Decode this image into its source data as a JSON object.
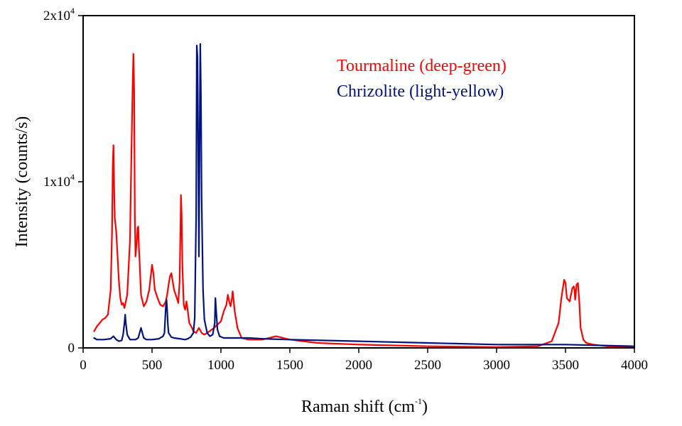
{
  "chart_data": {
    "type": "line",
    "title": "",
    "xlabel": "Raman shift (cm",
    "xlabel_sup": "-1",
    "xlabel_close": ")",
    "ylabel": "Intensity (counts/s)",
    "xlim": [
      0,
      4000
    ],
    "ylim": [
      0,
      20000
    ],
    "grid": false,
    "legend_position": "top-right (inside plot, text only)",
    "x_ticks": [
      {
        "value": 0,
        "label": "0"
      },
      {
        "value": 500,
        "label": "500"
      },
      {
        "value": 1000,
        "label": "1000"
      },
      {
        "value": 1500,
        "label": "1500"
      },
      {
        "value": 2000,
        "label": "2000"
      },
      {
        "value": 2500,
        "label": "2500"
      },
      {
        "value": 3000,
        "label": "3000"
      },
      {
        "value": 3500,
        "label": "3500"
      },
      {
        "value": 4000,
        "label": "4000"
      }
    ],
    "y_ticks": [
      {
        "value": 0,
        "base": "0",
        "sup": ""
      },
      {
        "value": 10000,
        "base": "1x10",
        "sup": "4"
      },
      {
        "value": 20000,
        "base": "2x10",
        "sup": "4"
      }
    ],
    "series": [
      {
        "name": "Tourmaline (deep-green)",
        "color": "#ff0000",
        "x": [
          80,
          100,
          120,
          140,
          160,
          180,
          200,
          210,
          215,
          220,
          225,
          230,
          240,
          250,
          260,
          270,
          280,
          290,
          300,
          320,
          340,
          350,
          360,
          365,
          370,
          375,
          380,
          390,
          395,
          400,
          405,
          410,
          420,
          440,
          460,
          480,
          500,
          510,
          520,
          540,
          560,
          580,
          600,
          610,
          620,
          630,
          640,
          650,
          660,
          680,
          690,
          700,
          705,
          710,
          715,
          720,
          730,
          740,
          750,
          760,
          770,
          790,
          800,
          820,
          840,
          860,
          880,
          900,
          950,
          1000,
          1020,
          1040,
          1050,
          1060,
          1070,
          1080,
          1085,
          1090,
          1100,
          1120,
          1150,
          1200,
          1300,
          1400,
          1500,
          1700,
          2000,
          2500,
          3000,
          3300,
          3400,
          3450,
          3470,
          3490,
          3500,
          3510,
          3530,
          3550,
          3560,
          3565,
          3570,
          3575,
          3580,
          3590,
          3600,
          3610,
          3630,
          3650,
          3700,
          3800,
          4000
        ],
        "y": [
          1000,
          1300,
          1500,
          1700,
          1800,
          2000,
          3500,
          7000,
          11000,
          12200,
          9500,
          7800,
          7000,
          5500,
          4000,
          3000,
          2600,
          2700,
          2400,
          3200,
          6500,
          11500,
          16000,
          17700,
          15500,
          8000,
          5500,
          6500,
          7200,
          7300,
          6000,
          5200,
          3200,
          2500,
          2800,
          3500,
          5000,
          4500,
          3500,
          3000,
          2600,
          2500,
          2800,
          3200,
          3800,
          4300,
          4500,
          4000,
          3500,
          3000,
          2700,
          4000,
          6500,
          9200,
          8000,
          5000,
          2600,
          2300,
          2800,
          2200,
          1500,
          1200,
          1000,
          900,
          1200,
          900,
          800,
          900,
          1200,
          1600,
          2200,
          2600,
          3200,
          2800,
          2500,
          3000,
          3400,
          3000,
          2200,
          1200,
          600,
          500,
          500,
          700,
          500,
          300,
          200,
          100,
          50,
          100,
          400,
          1500,
          3000,
          4100,
          3900,
          3000,
          2800,
          3600,
          3700,
          3500,
          2900,
          3300,
          3800,
          3900,
          2800,
          1200,
          500,
          300,
          200,
          100,
          0
        ]
      },
      {
        "name": "Chrizolite (light-yellow)",
        "color": "#001380",
        "x": [
          80,
          100,
          150,
          200,
          220,
          240,
          260,
          280,
          290,
          300,
          305,
          310,
          320,
          340,
          380,
          400,
          410,
          420,
          430,
          440,
          460,
          500,
          550,
          580,
          590,
          600,
          605,
          610,
          615,
          620,
          640,
          660,
          700,
          740,
          760,
          780,
          800,
          810,
          820,
          825,
          830,
          835,
          840,
          845,
          850,
          855,
          860,
          870,
          880,
          900,
          920,
          940,
          955,
          960,
          965,
          975,
          990,
          1020,
          1100,
          1200,
          1300,
          1500,
          2000,
          2500,
          3000,
          3500,
          4000
        ],
        "y": [
          600,
          500,
          500,
          550,
          700,
          500,
          400,
          450,
          800,
          1500,
          2000,
          1500,
          800,
          500,
          500,
          600,
          900,
          1200,
          900,
          600,
          500,
          500,
          550,
          700,
          900,
          2500,
          2900,
          2300,
          1400,
          900,
          650,
          600,
          550,
          500,
          550,
          650,
          900,
          1800,
          8000,
          18200,
          17500,
          12000,
          5500,
          12000,
          18300,
          15000,
          9000,
          3500,
          1700,
          900,
          700,
          800,
          1500,
          3000,
          2300,
          1100,
          700,
          600,
          600,
          600,
          550,
          500,
          400,
          300,
          200,
          200,
          100
        ]
      }
    ]
  }
}
